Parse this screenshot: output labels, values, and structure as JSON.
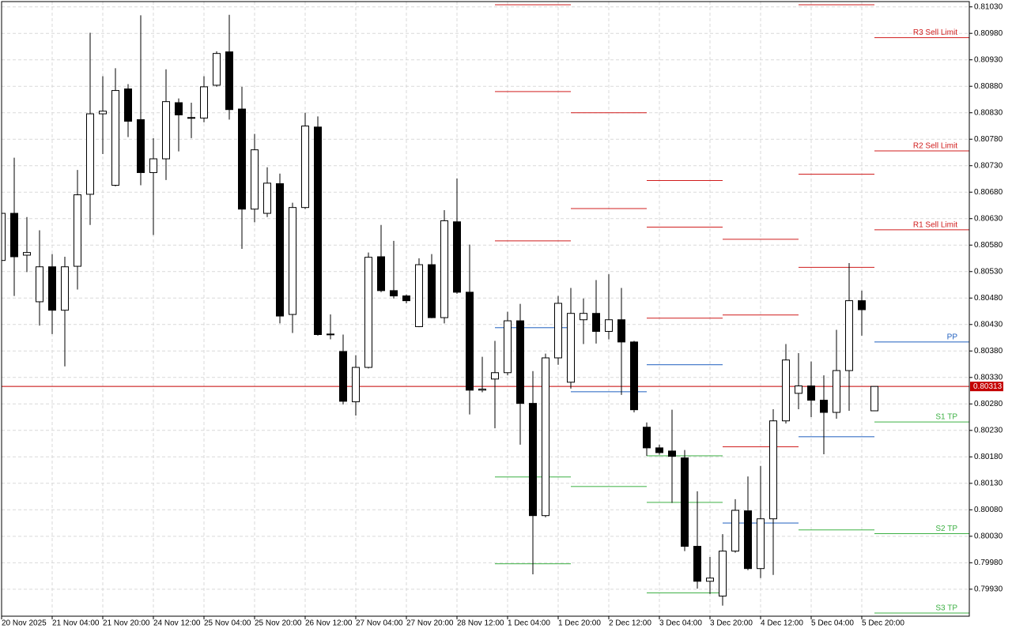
{
  "chart_data": {
    "type": "candlestick",
    "up_color": "#ffffff",
    "down_color": "#000000",
    "grid": true,
    "categories": [
      "20 Nov 2025",
      null,
      null,
      null,
      "21 Nov 04:00",
      null,
      null,
      null,
      "21 Nov 20:00",
      null,
      null,
      null,
      "24 Nov 12:00",
      null,
      null,
      null,
      "25 Nov 04:00",
      null,
      null,
      null,
      "25 Nov 20:00",
      null,
      null,
      null,
      "26 Nov 12:00",
      null,
      null,
      null,
      "27 Nov 04:00",
      null,
      null,
      null,
      "27 Nov 20:00",
      null,
      null,
      null,
      "28 Nov 12:00",
      null,
      null,
      null,
      "1 Dec 04:00",
      null,
      null,
      null,
      "1 Dec 20:00",
      null,
      null,
      null,
      "2 Dec 12:00",
      null,
      null,
      null,
      "3 Dec 04:00",
      null,
      null,
      null,
      "3 Dec 20:00",
      null,
      null,
      null,
      "4 Dec 12:00",
      null,
      null,
      null,
      "5 Dec 04:00",
      null,
      null,
      null,
      "5 Dec 20:00",
      null
    ],
    "open": [
      0.80551,
      0.8064,
      0.80561,
      0.80473,
      0.80539,
      0.80457,
      0.8054,
      0.80676,
      0.80828,
      0.80693,
      0.80875,
      0.80817,
      0.80717,
      0.80743,
      0.80849,
      0.8082,
      0.8082,
      0.80882,
      0.80945,
      0.80837,
      0.80648,
      0.8064,
      0.80696,
      0.80449,
      0.80651,
      0.80803,
      0.80411,
      0.80379,
      0.80284,
      0.80349,
      0.80558,
      0.80494,
      0.80484,
      0.80426,
      0.80543,
      0.80443,
      0.80624,
      0.80491,
      0.80306,
      0.80327,
      0.80339,
      0.80437,
      0.80281,
      0.80069,
      0.80367,
      0.80321,
      0.80439,
      0.80451,
      0.80417,
      0.80439,
      0.80397,
      0.80236,
      0.80197,
      0.80191,
      0.80178,
      0.80011,
      0.79945,
      0.79917,
      0.80002,
      0.80078,
      0.79969,
      0.80063,
      0.80248,
      0.803,
      0.80314,
      0.80287,
      0.80264,
      0.80343,
      0.80475,
      0.80267
    ],
    "high": [
      0.80648,
      0.80745,
      0.80633,
      0.80608,
      0.80563,
      0.80558,
      0.80722,
      0.80981,
      0.80899,
      0.80914,
      0.80884,
      0.81014,
      0.80782,
      0.80912,
      0.80857,
      0.80849,
      0.80899,
      0.80946,
      0.81015,
      0.80879,
      0.8079,
      0.80727,
      0.80715,
      0.8066,
      0.8083,
      0.80823,
      0.80449,
      0.80411,
      0.80372,
      0.80566,
      0.80618,
      0.80588,
      0.80487,
      0.80555,
      0.80563,
      0.80646,
      0.80706,
      0.80581,
      0.80369,
      0.80399,
      0.80454,
      0.80469,
      0.80342,
      0.80375,
      0.80484,
      0.80499,
      0.80479,
      0.80514,
      0.80525,
      0.80499,
      0.80399,
      0.80245,
      0.80203,
      0.80269,
      0.80193,
      0.80115,
      0.79991,
      0.80034,
      0.801,
      0.80143,
      0.80163,
      0.8027,
      0.80393,
      0.80376,
      0.8036,
      0.80334,
      0.8042,
      0.80546,
      0.80494,
      0.80313
    ],
    "low": [
      0.80529,
      0.80484,
      0.80529,
      0.80428,
      0.80412,
      0.80351,
      0.80496,
      0.80618,
      0.80752,
      0.80691,
      0.80784,
      0.80693,
      0.80599,
      0.80703,
      0.80757,
      0.80782,
      0.80812,
      0.80879,
      0.80817,
      0.80573,
      0.80623,
      0.80633,
      0.80432,
      0.80414,
      0.80648,
      0.80409,
      0.80402,
      0.80279,
      0.80258,
      0.80347,
      0.80491,
      0.80479,
      0.8047,
      0.80425,
      0.80442,
      0.80432,
      0.80488,
      0.8026,
      0.80302,
      0.80234,
      0.80334,
      0.80203,
      0.79958,
      0.80066,
      0.80354,
      0.80309,
      0.80393,
      0.80394,
      0.80402,
      0.80297,
      0.80264,
      0.80182,
      0.80184,
      0.80093,
      0.80002,
      0.79931,
      0.79921,
      0.79899,
      0.79999,
      0.79966,
      0.79951,
      0.79957,
      0.80243,
      0.8027,
      0.80255,
      0.80185,
      0.80252,
      0.80267,
      0.80409,
      0.80267
    ],
    "close": [
      0.8064,
      0.80558,
      0.80566,
      0.80539,
      0.80457,
      0.80539,
      0.80675,
      0.80828,
      0.80833,
      0.80872,
      0.80814,
      0.80717,
      0.80743,
      0.80851,
      0.80826,
      0.80821,
      0.80879,
      0.80942,
      0.80836,
      0.80648,
      0.8076,
      0.80697,
      0.80446,
      0.80651,
      0.80805,
      0.80411,
      0.80412,
      0.80285,
      0.80349,
      0.80557,
      0.80494,
      0.80484,
      0.80475,
      0.80543,
      0.80443,
      0.80626,
      0.80491,
      0.80306,
      0.80308,
      0.80339,
      0.80437,
      0.80281,
      0.80069,
      0.80367,
      0.8047,
      0.80451,
      0.80451,
      0.80417,
      0.80439,
      0.80397,
      0.80269,
      0.80197,
      0.80188,
      0.80181,
      0.80011,
      0.79945,
      0.79951,
      0.80002,
      0.80079,
      0.79969,
      0.80063,
      0.80248,
      0.80363,
      0.80314,
      0.80287,
      0.80264,
      0.80343,
      0.80475,
      0.80458,
      0.80313
    ],
    "current_price": 0.80313,
    "current_price_color": "#c40000",
    "levels": [
      {
        "name": "R3 Sell Limit",
        "color": "#d01c1c",
        "values": [
          null,
          null,
          null,
          null,
          null,
          null,
          null,
          null,
          null,
          null,
          null,
          null,
          null,
          null,
          null,
          null,
          null,
          null,
          null,
          null,
          null,
          null,
          null,
          null,
          null,
          null,
          null,
          null,
          null,
          null,
          null,
          null,
          null,
          null,
          null,
          null,
          null,
          null,
          null,
          0.81034,
          0.81034,
          0.81034,
          0.81034,
          0.81034,
          0.81034,
          null,
          null,
          null,
          null,
          null,
          null,
          0.80702,
          0.80702,
          0.80702,
          0.80702,
          0.80702,
          0.80702,
          0.80591,
          0.80591,
          0.80591,
          0.80591,
          0.80591,
          0.80591,
          0.81034,
          0.81034,
          0.81034,
          0.81034,
          0.81034,
          0.81034,
          0.80972
        ]
      },
      {
        "name": "R2 Sell Limit",
        "color": "#d01c1c",
        "values": [
          null,
          null,
          null,
          null,
          null,
          null,
          null,
          null,
          null,
          null,
          null,
          null,
          null,
          null,
          null,
          null,
          null,
          null,
          null,
          null,
          null,
          null,
          null,
          null,
          null,
          null,
          null,
          null,
          null,
          null,
          null,
          null,
          null,
          null,
          null,
          null,
          null,
          null,
          null,
          0.8087,
          0.8087,
          0.8087,
          0.8087,
          0.8087,
          0.8087,
          0.8083,
          0.8083,
          0.8083,
          0.8083,
          0.8083,
          0.8083,
          0.80614,
          0.80614,
          0.80614,
          0.80614,
          0.80614,
          0.80614,
          0.80448,
          0.80448,
          0.80448,
          0.80448,
          0.80448,
          0.80448,
          0.80714,
          0.80714,
          0.80714,
          0.80714,
          0.80714,
          0.80714,
          0.80758
        ]
      },
      {
        "name": "R1 Sell Limit",
        "color": "#d01c1c",
        "values": [
          null,
          null,
          null,
          null,
          null,
          null,
          null,
          null,
          null,
          null,
          null,
          null,
          null,
          null,
          null,
          null,
          null,
          null,
          null,
          null,
          null,
          null,
          null,
          null,
          null,
          null,
          null,
          null,
          null,
          null,
          null,
          null,
          null,
          null,
          null,
          null,
          null,
          null,
          null,
          0.80588,
          0.80588,
          0.80588,
          0.80588,
          0.80588,
          0.80588,
          0.80649,
          0.80649,
          0.80649,
          0.80649,
          0.80649,
          0.80649,
          0.80442,
          0.80442,
          0.80442,
          0.80442,
          0.80442,
          0.80442,
          0.80199,
          0.80199,
          0.80199,
          0.80199,
          0.80199,
          0.80199,
          0.80538,
          0.80538,
          0.80538,
          0.80538,
          0.80538,
          0.80538,
          0.80609
        ]
      },
      {
        "name": "PP",
        "color": "#1f5fbf",
        "values": [
          null,
          null,
          null,
          null,
          null,
          null,
          null,
          null,
          null,
          null,
          null,
          null,
          null,
          null,
          null,
          null,
          null,
          null,
          null,
          null,
          null,
          null,
          null,
          null,
          null,
          null,
          null,
          null,
          null,
          null,
          null,
          null,
          null,
          null,
          null,
          null,
          null,
          null,
          null,
          0.80424,
          0.80424,
          0.80424,
          0.80424,
          0.80424,
          0.80424,
          0.80303,
          0.80303,
          0.80303,
          0.80303,
          0.80303,
          0.80303,
          0.80354,
          0.80354,
          0.80354,
          0.80354,
          0.80354,
          0.80354,
          0.80055,
          0.80055,
          0.80055,
          0.80055,
          0.80055,
          0.80055,
          0.80218,
          0.80218,
          0.80218,
          0.80218,
          0.80218,
          0.80218,
          0.80397
        ]
      },
      {
        "name": "S1 TP",
        "color": "#3cb043",
        "values": [
          null,
          null,
          null,
          null,
          null,
          null,
          null,
          null,
          null,
          null,
          null,
          null,
          null,
          null,
          null,
          null,
          null,
          null,
          null,
          null,
          null,
          null,
          null,
          null,
          null,
          null,
          null,
          null,
          null,
          null,
          null,
          null,
          null,
          null,
          null,
          null,
          null,
          null,
          null,
          0.80142,
          0.80142,
          0.80142,
          0.80142,
          0.80142,
          0.80142,
          0.80124,
          0.80124,
          0.80124,
          0.80124,
          0.80124,
          0.80124,
          0.80182,
          0.80182,
          0.80182,
          0.80182,
          0.80182,
          0.80182,
          null,
          null,
          null,
          null,
          null,
          null,
          0.80042,
          0.80042,
          0.80042,
          0.80042,
          0.80042,
          0.80042,
          0.80246
        ]
      },
      {
        "name": "S2 TP",
        "color": "#3cb043",
        "values": [
          null,
          null,
          null,
          null,
          null,
          null,
          null,
          null,
          null,
          null,
          null,
          null,
          null,
          null,
          null,
          null,
          null,
          null,
          null,
          null,
          null,
          null,
          null,
          null,
          null,
          null,
          null,
          null,
          null,
          null,
          null,
          null,
          null,
          null,
          null,
          null,
          null,
          null,
          null,
          0.79978,
          0.79978,
          0.79978,
          0.79978,
          0.79978,
          0.79978,
          null,
          null,
          null,
          null,
          null,
          null,
          0.80094,
          0.80094,
          0.80094,
          0.80094,
          0.80094,
          0.80094,
          null,
          null,
          null,
          null,
          null,
          null,
          null,
          null,
          null,
          null,
          null,
          null,
          0.80035
        ]
      },
      {
        "name": "S3 TP",
        "color": "#3cb043",
        "values": [
          null,
          null,
          null,
          null,
          null,
          null,
          null,
          null,
          null,
          null,
          null,
          null,
          null,
          null,
          null,
          null,
          null,
          null,
          null,
          null,
          null,
          null,
          null,
          null,
          null,
          null,
          null,
          null,
          null,
          null,
          null,
          null,
          null,
          null,
          null,
          null,
          null,
          null,
          null,
          null,
          null,
          null,
          null,
          null,
          null,
          null,
          null,
          null,
          null,
          null,
          null,
          0.79923,
          0.79923,
          0.79923,
          0.79923,
          0.79923,
          0.79923,
          null,
          null,
          null,
          null,
          null,
          null,
          null,
          null,
          null,
          null,
          null,
          null,
          0.79885
        ]
      }
    ],
    "ylim": [
      0.79879,
      0.8104
    ],
    "yticks": [
      {
        "value": 0.8103,
        "label": "0.81030"
      },
      {
        "value": 0.8098,
        "label": "0.80980"
      },
      {
        "value": 0.8093,
        "label": "0.80930"
      },
      {
        "value": 0.8088,
        "label": "0.80880"
      },
      {
        "value": 0.8083,
        "label": "0.80830"
      },
      {
        "value": 0.8078,
        "label": "0.80780"
      },
      {
        "value": 0.8073,
        "label": "0.80730"
      },
      {
        "value": 0.8068,
        "label": "0.80680"
      },
      {
        "value": 0.8063,
        "label": "0.80630"
      },
      {
        "value": 0.8058,
        "label": "0.80580"
      },
      {
        "value": 0.8053,
        "label": "0.80530"
      },
      {
        "value": 0.8048,
        "label": "0.80480"
      },
      {
        "value": 0.8043,
        "label": "0.80430"
      },
      {
        "value": 0.8038,
        "label": "0.80380"
      },
      {
        "value": 0.8033,
        "label": "0.80330"
      },
      {
        "value": 0.8028,
        "label": "0.80280"
      },
      {
        "value": 0.8023,
        "label": "0.80230"
      },
      {
        "value": 0.8018,
        "label": "0.80180"
      },
      {
        "value": 0.8013,
        "label": "0.80130"
      },
      {
        "value": 0.8008,
        "label": "0.80080"
      },
      {
        "value": 0.8003,
        "label": "0.80030"
      },
      {
        "value": 0.7998,
        "label": "0.79980"
      },
      {
        "value": 0.7993,
        "label": "0.79930"
      }
    ]
  }
}
